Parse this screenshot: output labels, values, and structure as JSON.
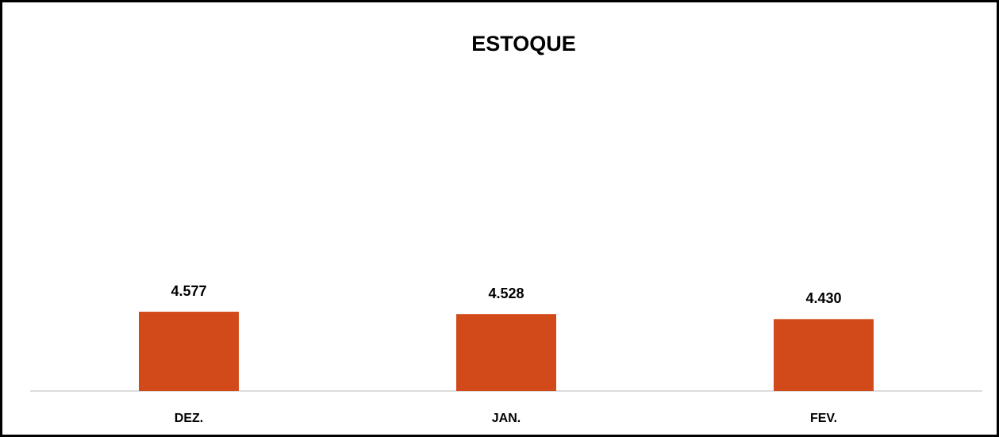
{
  "chart_data": {
    "type": "bar",
    "title": "ESTOQUE",
    "categories": [
      "DEZ.",
      "JAN.",
      "FEV."
    ],
    "values": [
      4577,
      4528,
      4430
    ],
    "value_labels": [
      "4.577",
      "4.528",
      "4.430"
    ],
    "color": "#d24a1a",
    "ylim": [
      3000,
      9500
    ]
  }
}
